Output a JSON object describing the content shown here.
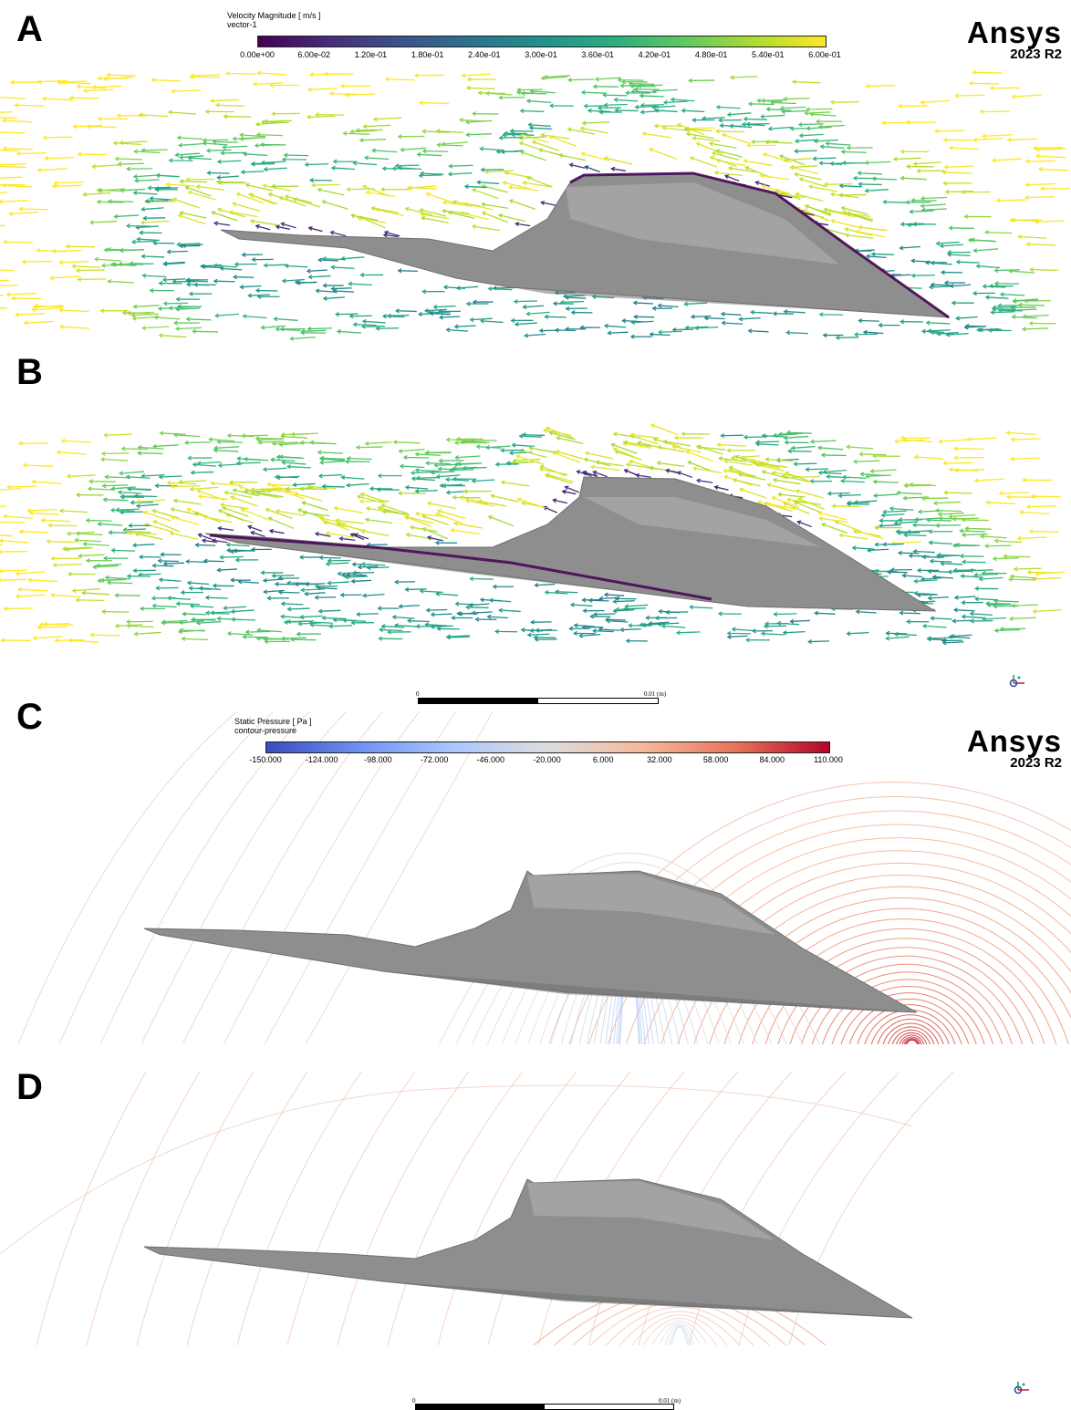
{
  "panels": [
    {
      "label": "A"
    },
    {
      "label": "B"
    },
    {
      "label": "C"
    },
    {
      "label": "D"
    }
  ],
  "brand": {
    "name": "Ansys",
    "version": "2023 R2"
  },
  "velocity_legend": {
    "title": "Velocity Magnitude [ m/s ]",
    "subtitle": "vector-1",
    "ticks": [
      "0.00e+00",
      "6.00e-02",
      "1.20e-01",
      "1.80e-01",
      "2.40e-01",
      "3.00e-01",
      "3.60e-01",
      "4.20e-01",
      "4.80e-01",
      "5.40e-01",
      "6.00e-01"
    ],
    "colors": [
      "#440154",
      "#472c7a",
      "#3b528b",
      "#2c728e",
      "#21918c",
      "#28ae80",
      "#5ec962",
      "#addc30",
      "#fde725"
    ]
  },
  "pressure_legend": {
    "title": "Static Pressure [ Pa ]",
    "subtitle": "contour-pressure",
    "ticks": [
      "-150.000",
      "-124.000",
      "-98.000",
      "-72.000",
      "-46.000",
      "-20.000",
      "6.000",
      "32.000",
      "58.000",
      "84.000",
      "110.000"
    ],
    "colors": [
      "#3b4cc0",
      "#6f92f3",
      "#aac7fd",
      "#dddddd",
      "#f7b89c",
      "#e7745b",
      "#b40426"
    ]
  },
  "scale_bar": {
    "start": "0",
    "end": "0.01 (m)"
  },
  "colors": {
    "body": "#8e8e8e",
    "body_dark": "#6f6f6f",
    "body_light": "#b5b5b5"
  }
}
